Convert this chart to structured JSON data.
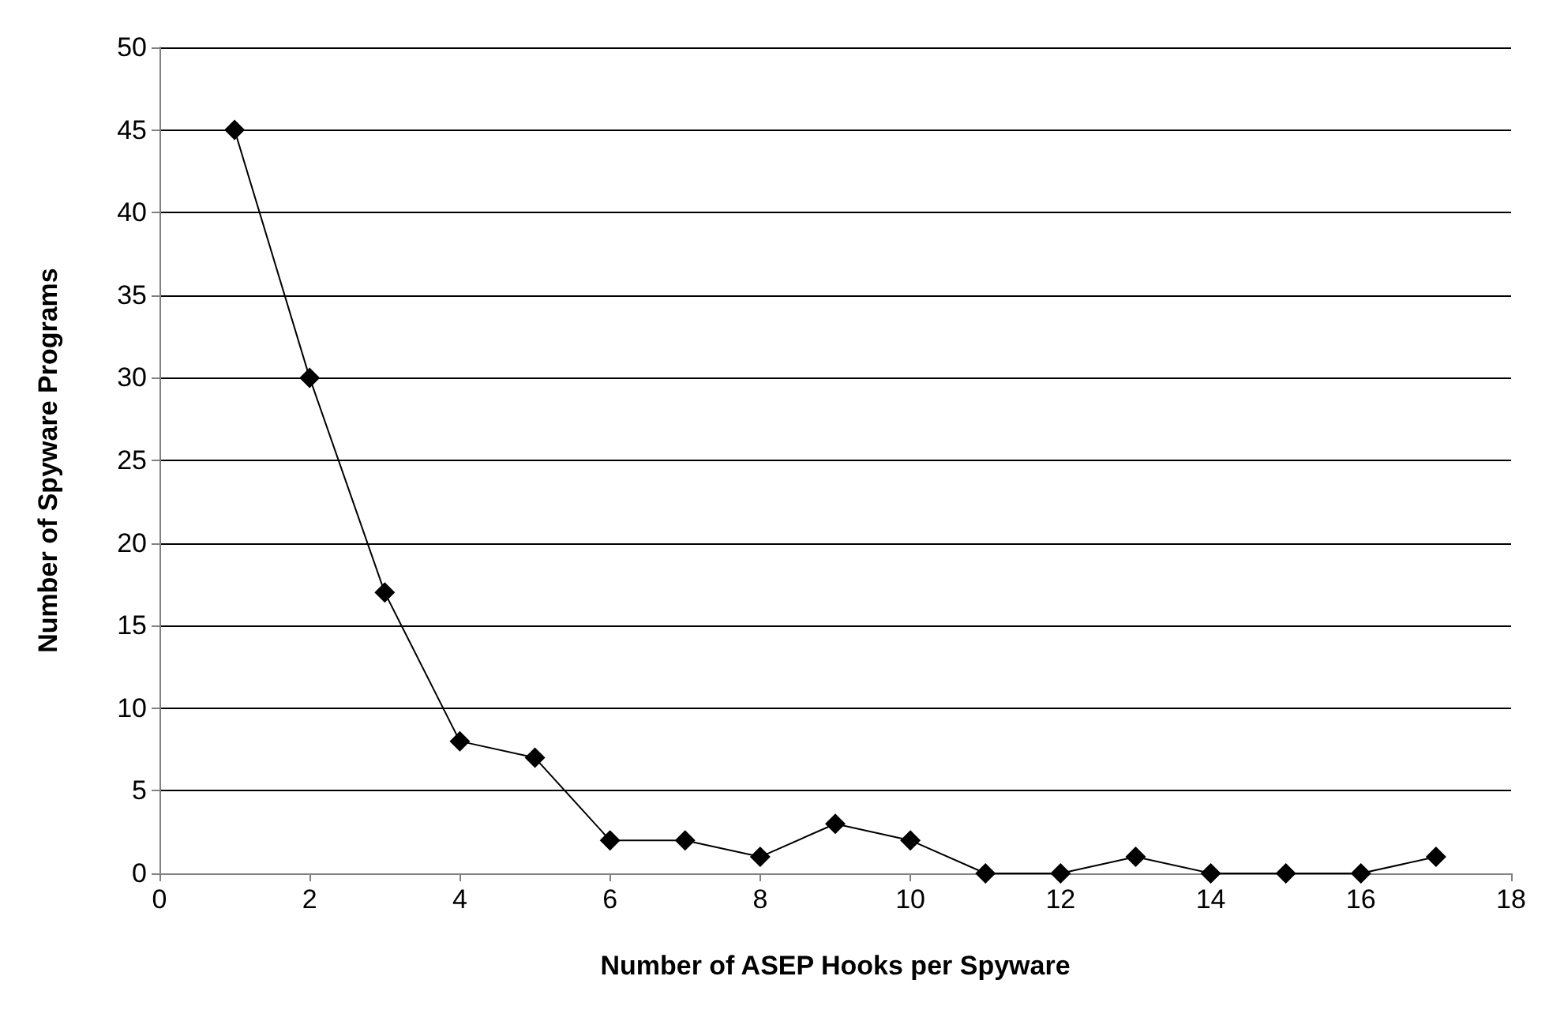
{
  "chart_data": {
    "type": "line",
    "xlabel": "Number of ASEP Hooks per Spyware",
    "ylabel": "Number of Spyware Programs",
    "x": [
      1,
      2,
      3,
      4,
      5,
      6,
      7,
      8,
      9,
      10,
      11,
      12,
      13,
      14,
      15,
      16,
      17
    ],
    "series": [
      {
        "color": "#000000",
        "values": [
          45,
          30,
          17,
          8,
          7,
          2,
          2,
          1,
          3,
          2,
          0,
          0,
          1,
          0,
          0,
          0,
          1
        ]
      }
    ],
    "xlim": [
      0,
      18
    ],
    "xticks": [
      0,
      2,
      4,
      6,
      8,
      10,
      12,
      14,
      16,
      18
    ],
    "ylim": [
      0,
      50
    ],
    "yticks": [
      0,
      5,
      10,
      15,
      20,
      25,
      30,
      35,
      40,
      45,
      50
    ],
    "grid": "y",
    "marker": "diamond",
    "line_style": "solid"
  }
}
